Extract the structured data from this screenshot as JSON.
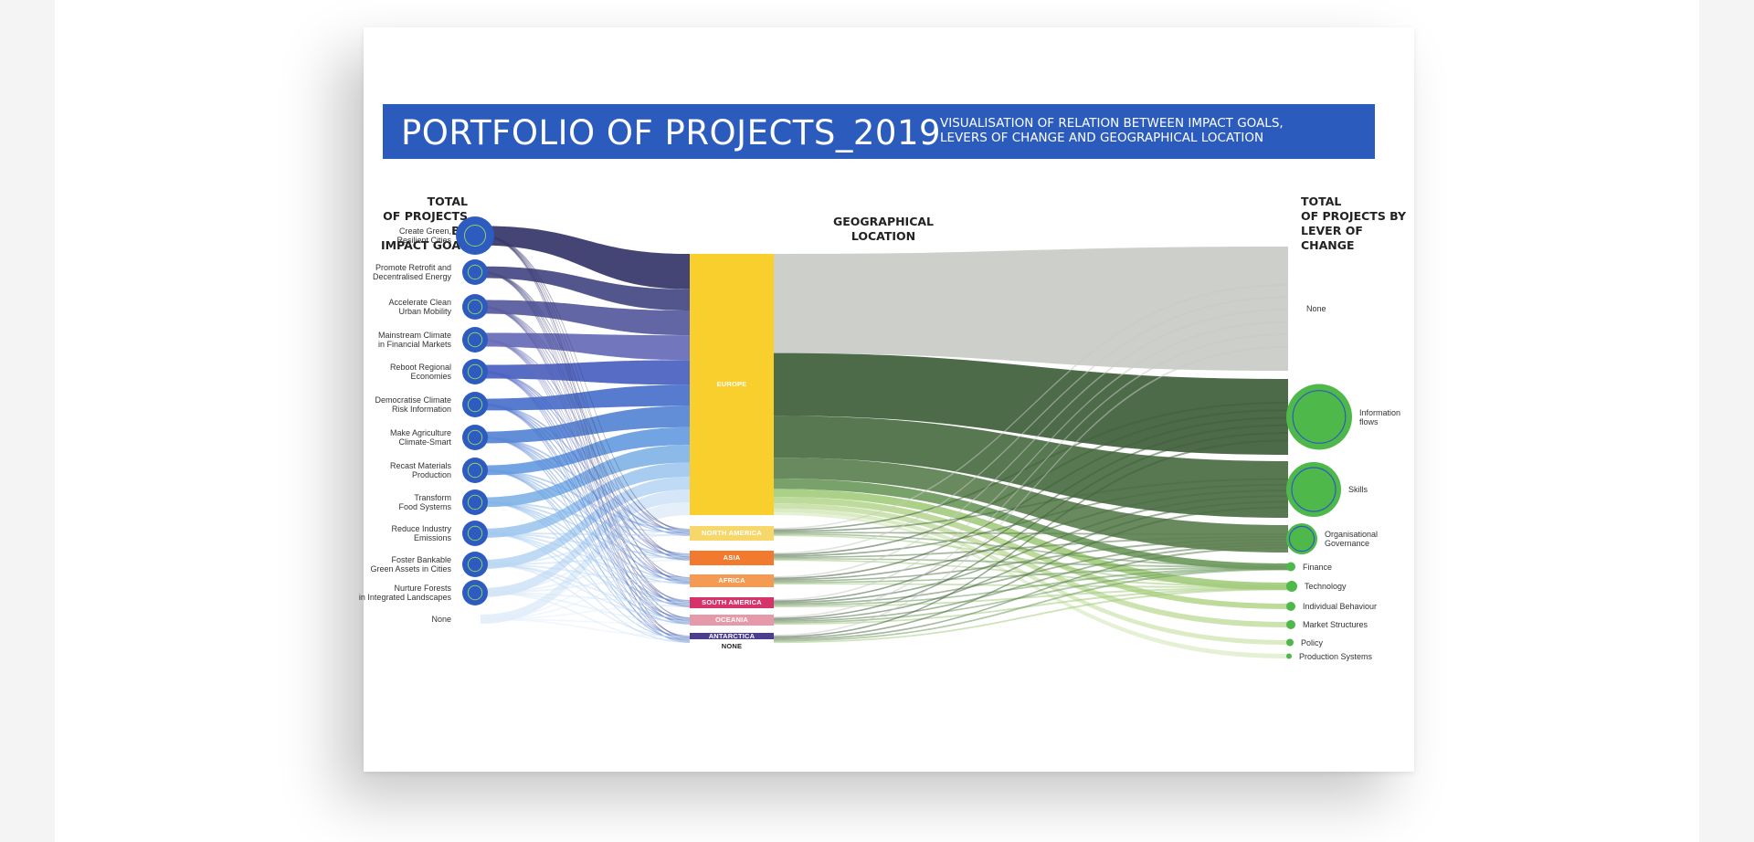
{
  "poster": {
    "title": "PORTFOLIO OF PROJECTS_2019",
    "subtitle_line1": "VISUALISATION OF RELATION BETWEEN IMPACT GOALS,",
    "subtitle_line2": "LEVERS OF CHANGE AND GEOGRAPHICAL LOCATION",
    "left_header": [
      "TOTAL",
      "OF PROJECTS BY",
      "IMPACT GOAL"
    ],
    "center_header": [
      "GEOGRAPHICAL",
      "LOCATION"
    ],
    "right_header": [
      "TOTAL",
      "OF PROJECTS BY",
      "LEVER OF CHANGE"
    ]
  },
  "impact_goals": [
    {
      "label": [
        "Create Green,",
        "Resilient Cities"
      ],
      "icon": "city-icon",
      "weight": 5,
      "color": "#3a3a6e"
    },
    {
      "label": [
        "Promote Retrofit and",
        "Decentralised Energy"
      ],
      "icon": "lightning-icon",
      "weight": 3,
      "color": "#4a4d86"
    },
    {
      "label": [
        "Accelerate Clean",
        "Urban Mobility"
      ],
      "icon": "bus-icon",
      "weight": 3.5,
      "color": "#5a5ea0"
    },
    {
      "label": [
        "Mainstream Climate",
        "in Financial Markets"
      ],
      "icon": "coins-icon",
      "weight": 3.5,
      "color": "#6a6fb8"
    },
    {
      "label": [
        "Reboot Regional",
        "Economies"
      ],
      "icon": "recycle-icon",
      "weight": 3.5,
      "color": "#4e64c2"
    },
    {
      "label": [
        "Democratise Climate",
        "Risk Information"
      ],
      "icon": "warning-icon",
      "weight": 3,
      "color": "#4d74cc"
    },
    {
      "label": [
        "Make Agriculture",
        "Climate-Smart"
      ],
      "icon": "plant-icon",
      "weight": 3,
      "color": "#5a88d6"
    },
    {
      "label": [
        "Recast Materials",
        "Production"
      ],
      "icon": "materials-icon",
      "weight": 2.5,
      "color": "#6a9ee0"
    },
    {
      "label": [
        "Transform",
        "Food Systems"
      ],
      "icon": "food-icon",
      "weight": 2.5,
      "color": "#85b6e8"
    },
    {
      "label": [
        "Reduce Industry",
        "Emissions"
      ],
      "icon": "factory-icon",
      "weight": 2,
      "color": "#a2c9ef"
    },
    {
      "label": [
        "Foster Bankable",
        "Green Assets in Cities"
      ],
      "icon": "bank-icon",
      "weight": 1.8,
      "color": "#bcd8f3"
    },
    {
      "label": [
        "Nurture Forests",
        "in Integrated Landscapes"
      ],
      "icon": "tree-icon",
      "weight": 1.8,
      "color": "#d2e5f7"
    },
    {
      "label": [
        "None"
      ],
      "icon": "",
      "weight": 1.8,
      "color": "#e3eefa"
    }
  ],
  "locations": [
    {
      "label": "EUROPE",
      "color": "#f8cf2c"
    },
    {
      "label": "NORTH AMERICA",
      "color": "#f7d66a"
    },
    {
      "label": "ASIA",
      "color": "#f27a2f"
    },
    {
      "label": "AFRICA",
      "color": "#f59a52"
    },
    {
      "label": "SOUTH AMERICA",
      "color": "#d6336a"
    },
    {
      "label": "OCEANIA",
      "color": "#e69aa9"
    },
    {
      "label": "ANTARCTICA",
      "color": "#4b3d8f"
    },
    {
      "label": "NONE",
      "color": "#ffffff"
    }
  ],
  "levers": [
    {
      "label": [
        "None"
      ],
      "icon": "",
      "color": "#c9cbc5"
    },
    {
      "label": [
        "Information",
        "flows"
      ],
      "icon": "info-icon",
      "color": "#3f5e3a"
    },
    {
      "label": [
        "Skills"
      ],
      "icon": "wrench-icon",
      "color": "#4a6d43"
    },
    {
      "label": [
        "Organisational",
        "Governance"
      ],
      "icon": "building-icon",
      "color": "#5c7f50"
    },
    {
      "label": [
        "Finance"
      ],
      "icon": "",
      "color": "#6e9a5e"
    },
    {
      "label": [
        "Technology"
      ],
      "icon": "",
      "color": "#a4cc7e"
    },
    {
      "label": [
        "Individual Behaviour"
      ],
      "icon": "",
      "color": "#b8d893"
    },
    {
      "label": [
        "Market Structures"
      ],
      "icon": "",
      "color": "#c8e1a8"
    },
    {
      "label": [
        "Policy"
      ],
      "icon": "",
      "color": "#d8eabf"
    },
    {
      "label": [
        "Production Systems"
      ],
      "icon": "",
      "color": "#e3f0d0"
    }
  ],
  "colors": {
    "banner": "#2b5bbd",
    "icon_circle": "#2d5bbf",
    "lever_icon_circle": "#4fb84a"
  }
}
